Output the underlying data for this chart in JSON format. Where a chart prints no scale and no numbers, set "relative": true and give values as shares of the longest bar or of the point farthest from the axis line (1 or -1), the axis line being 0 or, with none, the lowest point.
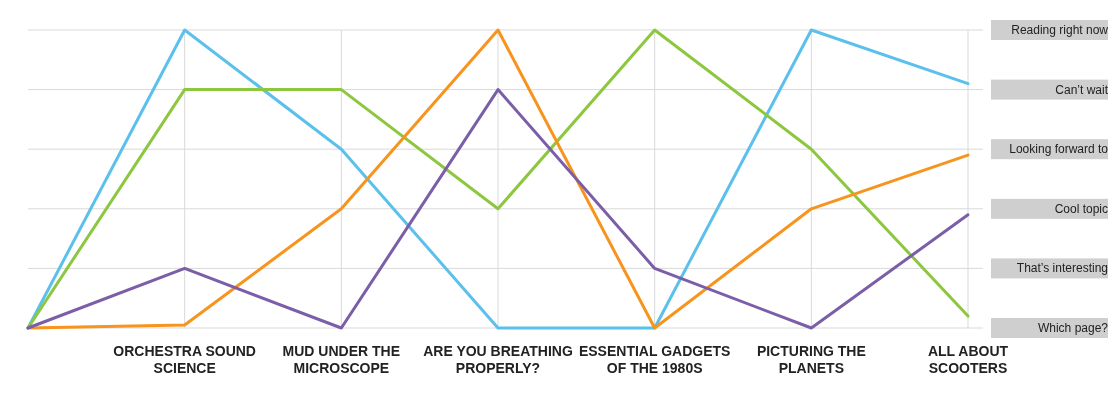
{
  "chart_data": {
    "type": "line",
    "relative": true,
    "categories": [
      null,
      "ORCHESTRA SOUND SCIENCE",
      "MUD UNDER THE MICROSCOPE",
      "ARE YOU BREATHING PROPERLY?",
      "ESSENTIAL GADGETS OF THE 1980S",
      "PICTURING THE PLANETS",
      "ALL ABOUT SCOOTERS"
    ],
    "annotations": [
      "Which page?",
      "That’s interesting",
      "Cool topic",
      "Looking forward to",
      "Can’t wait",
      "Reading right now"
    ],
    "grid": true,
    "marker": "none",
    "line_style": "solid",
    "series": [
      {
        "color": "#5bc0eb",
        "values": [
          0,
          1,
          0.6,
          0,
          0,
          1,
          0.82
        ]
      },
      {
        "color": "#8dc63f",
        "values": [
          0,
          0.8,
          0.8,
          0.4,
          1,
          0.6,
          0.04
        ]
      },
      {
        "color": "#f7941d",
        "values": [
          0,
          0.01,
          0.4,
          1,
          0,
          0.4,
          0.58
        ]
      },
      {
        "color": "#7b5ea7",
        "values": [
          0,
          0.2,
          0,
          0.8,
          0.2,
          0,
          0.38
        ]
      }
    ]
  }
}
